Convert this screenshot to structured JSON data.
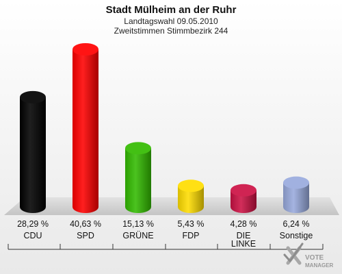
{
  "chart_data": {
    "type": "bar",
    "title": "Stadt Mülheim an der Ruhr",
    "subtitle": "Landtagswahl 09.05.2010",
    "subtitle2": "Zweitstimmen Stimmbezirk 244",
    "categories": [
      "CDU",
      "SPD",
      "GRÜNE",
      "FDP",
      "DIE LINKE",
      "Sonstige"
    ],
    "category_lines": [
      [
        "CDU"
      ],
      [
        "SPD"
      ],
      [
        "GRÜNE"
      ],
      [
        "FDP"
      ],
      [
        "DIE",
        "LINKE"
      ],
      [
        "Sonstige"
      ]
    ],
    "values": [
      28.29,
      40.63,
      15.13,
      5.43,
      4.28,
      6.24
    ],
    "value_labels": [
      "28,29 %",
      "40,63 %",
      "15,13 %",
      "5,43 %",
      "4,28 %",
      "6,24 %"
    ],
    "colors": [
      "#000000",
      "#ff0000",
      "#33bb00",
      "#ffdd00",
      "#cc1144",
      "#99aadd"
    ],
    "ylim": [
      0,
      40.63
    ],
    "grid": false,
    "legend": "none"
  },
  "logo": {
    "line1": "VOTE",
    "line2": "MANAGER",
    "icon": "checkmark-x-icon"
  }
}
